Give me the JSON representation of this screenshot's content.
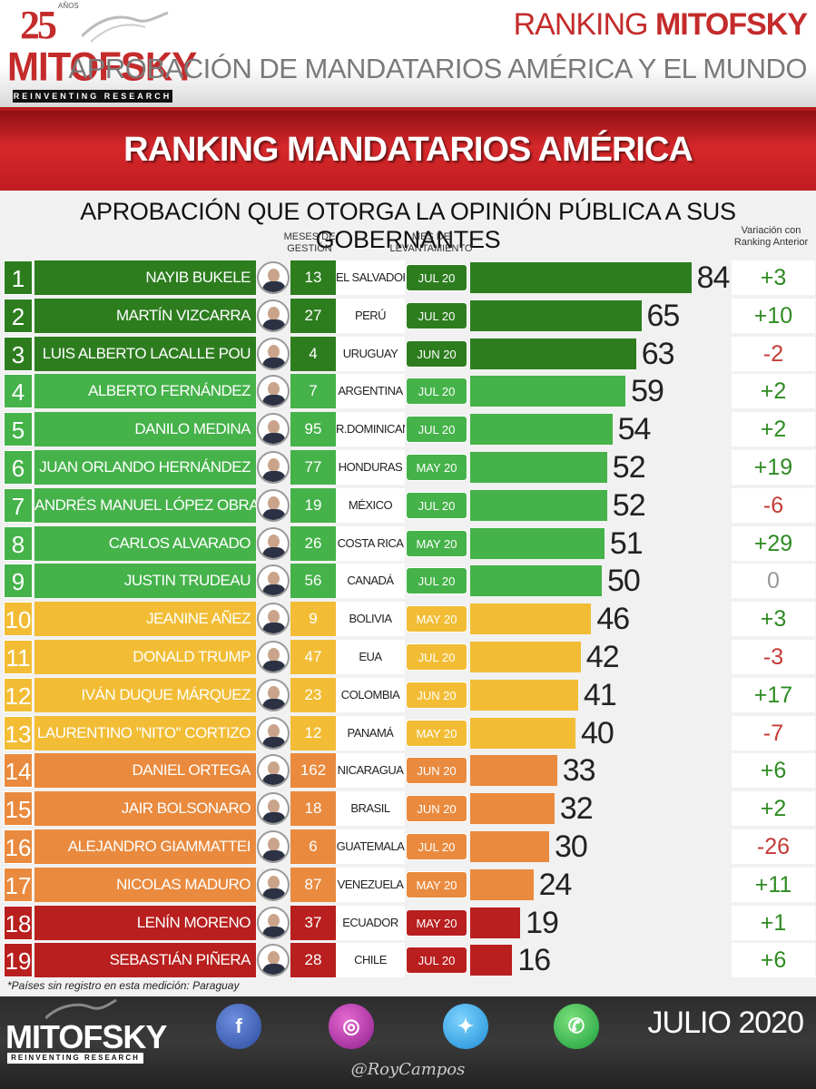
{
  "header": {
    "logo_years": "25",
    "logo_anos": "AÑOS",
    "logo_word": "MITOFSKY",
    "logo_tagline": "REINVENTING RESEARCH",
    "ranking_prefix": "RANKING ",
    "ranking_brand": "MITOFSKY",
    "subtitle": "APROBACIÓN DE MANDATARIOS AMÉRICA Y EL MUNDO"
  },
  "banner": {
    "title": "RANKING MANDATARIOS AMÉRICA"
  },
  "approval_title": "APROBACIÓN QUE OTORGA LA OPINIÓN PÚBLICA A SUS GOBERNANTES",
  "columns": {
    "meses_gestion": "MESES DE GESTIÓN",
    "mes_levantamiento": "MES DE LEVANTAMIENTO",
    "variacion": "Variación con Ranking Anterior"
  },
  "colors": {
    "dark_green": "#2d7d1f",
    "green": "#45b24a",
    "yellow": "#f2bd35",
    "orange": "#e98a3e",
    "red": "#b81f1e",
    "positive": "#2e8b22",
    "negative": "#c43a35",
    "neutral": "#999999"
  },
  "chart_data": {
    "type": "bar",
    "categories": [
      "NAYIB BUKELE",
      "MARTÍN VIZCARRA",
      "LUIS ALBERTO LACALLE POU",
      "ALBERTO FERNÁNDEZ",
      "DANILO MEDINA",
      "JUAN ORLANDO HERNÁNDEZ",
      "ANDRÉS MANUEL LÓPEZ OBRADOR",
      "CARLOS ALVARADO",
      "JUSTIN TRUDEAU",
      "JEANINE AÑEZ",
      "DONALD TRUMP",
      "IVÁN DUQUE MÁRQUEZ",
      "LAURENTINO \"NITO\" CORTIZO",
      "DANIEL ORTEGA",
      "JAIR BOLSONARO",
      "ALEJANDRO GIAMMATTEI",
      "NICOLAS MADURO",
      "LENÍN MORENO",
      "SEBASTIÁN PIÑERA"
    ],
    "values": [
      84,
      65,
      63,
      59,
      54,
      52,
      52,
      51,
      50,
      46,
      42,
      41,
      40,
      33,
      32,
      30,
      24,
      19,
      16
    ],
    "xlim": [
      0,
      100
    ],
    "rows": [
      {
        "rank": "1",
        "name": "NAYIB BUKELE",
        "months": "13",
        "country": "EL SALVADOR",
        "survey": "JUL 20",
        "approval": 84,
        "variation": "+3",
        "tier": "dark_green",
        "vsign": "positive"
      },
      {
        "rank": "2",
        "name": "MARTÍN VIZCARRA",
        "months": "27",
        "country": "PERÚ",
        "survey": "JUL 20",
        "approval": 65,
        "variation": "+10",
        "tier": "dark_green",
        "vsign": "positive"
      },
      {
        "rank": "3",
        "name": "LUIS ALBERTO LACALLE POU",
        "months": "4",
        "country": "URUGUAY",
        "survey": "JUN 20",
        "approval": 63,
        "variation": "-2",
        "tier": "dark_green",
        "vsign": "negative"
      },
      {
        "rank": "4",
        "name": "ALBERTO FERNÁNDEZ",
        "months": "7",
        "country": "ARGENTINA",
        "survey": "JUL 20",
        "approval": 59,
        "variation": "+2",
        "tier": "green",
        "vsign": "positive"
      },
      {
        "rank": "5",
        "name": "DANILO MEDINA",
        "months": "95",
        "country": "R.DOMINICANA",
        "survey": "JUL 20",
        "approval": 54,
        "variation": "+2",
        "tier": "green",
        "vsign": "positive"
      },
      {
        "rank": "6",
        "name": "JUAN ORLANDO HERNÁNDEZ",
        "months": "77",
        "country": "HONDURAS",
        "survey": "MAY 20",
        "approval": 52,
        "variation": "+19",
        "tier": "green",
        "vsign": "positive"
      },
      {
        "rank": "7",
        "name": "ANDRÉS MANUEL LÓPEZ OBRADOR",
        "months": "19",
        "country": "MÉXICO",
        "survey": "JUL 20",
        "approval": 52,
        "variation": "-6",
        "tier": "green",
        "vsign": "negative"
      },
      {
        "rank": "8",
        "name": "CARLOS ALVARADO",
        "months": "26",
        "country": "COSTA RICA",
        "survey": "MAY 20",
        "approval": 51,
        "variation": "+29",
        "tier": "green",
        "vsign": "positive"
      },
      {
        "rank": "9",
        "name": "JUSTIN TRUDEAU",
        "months": "56",
        "country": "CANADÁ",
        "survey": "JUL 20",
        "approval": 50,
        "variation": "0",
        "tier": "green",
        "vsign": "neutral"
      },
      {
        "rank": "10",
        "name": "JEANINE AÑEZ",
        "months": "9",
        "country": "BOLIVIA",
        "survey": "MAY 20",
        "approval": 46,
        "variation": "+3",
        "tier": "yellow",
        "vsign": "positive"
      },
      {
        "rank": "11",
        "name": "DONALD TRUMP",
        "months": "47",
        "country": "EUA",
        "survey": "JUL 20",
        "approval": 42,
        "variation": "-3",
        "tier": "yellow",
        "vsign": "negative"
      },
      {
        "rank": "12",
        "name": "IVÁN DUQUE MÁRQUEZ",
        "months": "23",
        "country": "COLOMBIA",
        "survey": "JUN 20",
        "approval": 41,
        "variation": "+17",
        "tier": "yellow",
        "vsign": "positive"
      },
      {
        "rank": "13",
        "name": "LAURENTINO \"NITO\" CORTIZO",
        "months": "12",
        "country": "PANAMÁ",
        "survey": "MAY 20",
        "approval": 40,
        "variation": "-7",
        "tier": "yellow",
        "vsign": "negative"
      },
      {
        "rank": "14",
        "name": "DANIEL ORTEGA",
        "months": "162",
        "country": "NICARAGUA",
        "survey": "JUN 20",
        "approval": 33,
        "variation": "+6",
        "tier": "orange",
        "vsign": "positive"
      },
      {
        "rank": "15",
        "name": "JAIR BOLSONARO",
        "months": "18",
        "country": "BRASIL",
        "survey": "JUN 20",
        "approval": 32,
        "variation": "+2",
        "tier": "orange",
        "vsign": "positive"
      },
      {
        "rank": "16",
        "name": "ALEJANDRO GIAMMATTEI",
        "months": "6",
        "country": "GUATEMALA",
        "survey": "JUL 20",
        "approval": 30,
        "variation": "-26",
        "tier": "orange",
        "vsign": "negative"
      },
      {
        "rank": "17",
        "name": "NICOLAS MADURO",
        "months": "87",
        "country": "VENEZUELA",
        "survey": "MAY 20",
        "approval": 24,
        "variation": "+11",
        "tier": "orange",
        "vsign": "positive"
      },
      {
        "rank": "18",
        "name": "LENÍN MORENO",
        "months": "37",
        "country": "ECUADOR",
        "survey": "MAY 20",
        "approval": 19,
        "variation": "+1",
        "tier": "red",
        "vsign": "positive"
      },
      {
        "rank": "19",
        "name": "SEBASTIÁN PIÑERA",
        "months": "28",
        "country": "CHILE",
        "survey": "JUL 20",
        "approval": 16,
        "variation": "+6",
        "tier": "red",
        "vsign": "positive"
      }
    ]
  },
  "footnote": "*Países sin registro en esta medición: Paraguay",
  "footer": {
    "logo_word": "MITOFSKY",
    "logo_tagline": "REINVENTING RESEARCH",
    "social": [
      {
        "glyph": "f",
        "icon": "facebook-icon"
      },
      {
        "glyph": "◎",
        "icon": "instagram-icon"
      },
      {
        "glyph": "✦",
        "icon": "twitter-icon"
      },
      {
        "glyph": "✆",
        "icon": "whatsapp-icon"
      }
    ],
    "date": "JULIO 2020",
    "handle": "@RoyCampos"
  }
}
